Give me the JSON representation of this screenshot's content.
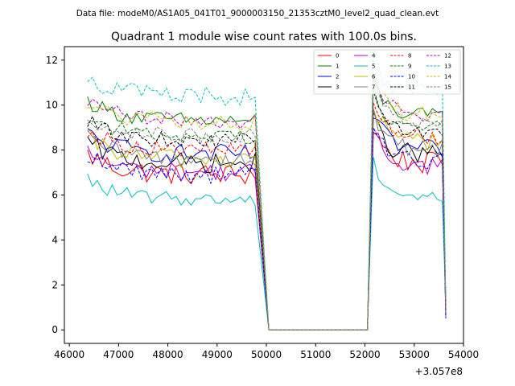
{
  "header_text": "Data file: modeM0/AS1A05_041T01_9000003150_21353cztM0_level2_quad_clean.evt",
  "chart_data": {
    "type": "line",
    "title": "Quadrant 1 module wise count rates with 100.0s bins.",
    "xlabel": "",
    "ylabel": "",
    "x_offset_text": "+3.057e8",
    "xlim": [
      45900,
      54000
    ],
    "ylim": [
      -0.6,
      12.6
    ],
    "x_ticks": [
      46000,
      47000,
      48000,
      49000,
      50000,
      51000,
      52000,
      53000,
      54000
    ],
    "x_tick_labels": [
      "46000",
      "47000",
      "48000",
      "49000",
      "50000",
      "51000",
      "52000",
      "53000",
      "54000"
    ],
    "y_ticks": [
      0,
      2,
      4,
      6,
      8,
      10,
      12
    ],
    "y_tick_labels": [
      "0",
      "2",
      "4",
      "6",
      "8",
      "10",
      "12"
    ],
    "legend_position": "top-right",
    "bin_seconds": 100,
    "segments": [
      {
        "start": 46370,
        "count": 35
      },
      {
        "flat_from": 50050,
        "flat_to": 52050,
        "value": 0
      },
      {
        "start": 52170,
        "count": 15
      }
    ],
    "series": [
      {
        "name": "0",
        "color": "#ff0000",
        "dash": "solid",
        "level": 6.9,
        "level2": 7.4,
        "noise": 0.5
      },
      {
        "name": "1",
        "color": "#008000",
        "dash": "solid",
        "level": 9.3,
        "level2": 9.5,
        "noise": 0.35
      },
      {
        "name": "2",
        "color": "#0000ff",
        "dash": "solid",
        "level": 7.8,
        "level2": 8.0,
        "noise": 0.45
      },
      {
        "name": "3",
        "color": "#000000",
        "dash": "solid",
        "level": 7.4,
        "level2": 7.8,
        "noise": 0.45
      },
      {
        "name": "4",
        "color": "#bf00bf",
        "dash": "solid",
        "level": 7.0,
        "level2": 7.3,
        "noise": 0.4
      },
      {
        "name": "5",
        "color": "#00bfbf",
        "dash": "solid",
        "level": 5.8,
        "level2": 5.9,
        "noise": 0.3
      },
      {
        "name": "6",
        "color": "#bfbf00",
        "dash": "solid",
        "level": 7.6,
        "level2": 8.4,
        "noise": 0.45
      },
      {
        "name": "7",
        "color": "#808080",
        "dash": "solid",
        "level": 7.6,
        "level2": 8.0,
        "noise": 0.4
      },
      {
        "name": "8",
        "color": "#ff0000",
        "dash": "dashed",
        "level": 8.0,
        "level2": 8.6,
        "noise": 0.35
      },
      {
        "name": "9",
        "color": "#008000",
        "dash": "dashed",
        "level": 8.6,
        "level2": 9.0,
        "noise": 0.35
      },
      {
        "name": "10",
        "color": "#0000ff",
        "dash": "dashed",
        "level": 6.9,
        "level2": 7.5,
        "noise": 0.4
      },
      {
        "name": "11",
        "color": "#000000",
        "dash": "dashed",
        "level": 8.4,
        "level2": 8.8,
        "noise": 0.35
      },
      {
        "name": "12",
        "color": "#bf00bf",
        "dash": "dashed",
        "level": 9.3,
        "level2": 9.6,
        "noise": 0.35
      },
      {
        "name": "13",
        "color": "#00bfbf",
        "dash": "dashed",
        "level": 10.4,
        "level2": 10.5,
        "noise": 0.45
      },
      {
        "name": "14",
        "color": "#bfbf00",
        "dash": "dashed",
        "level": 9.2,
        "level2": 9.6,
        "noise": 0.4
      },
      {
        "name": "15",
        "color": "#808080",
        "dash": "dashed",
        "level": 8.6,
        "level2": 9.2,
        "noise": 0.35
      }
    ]
  }
}
